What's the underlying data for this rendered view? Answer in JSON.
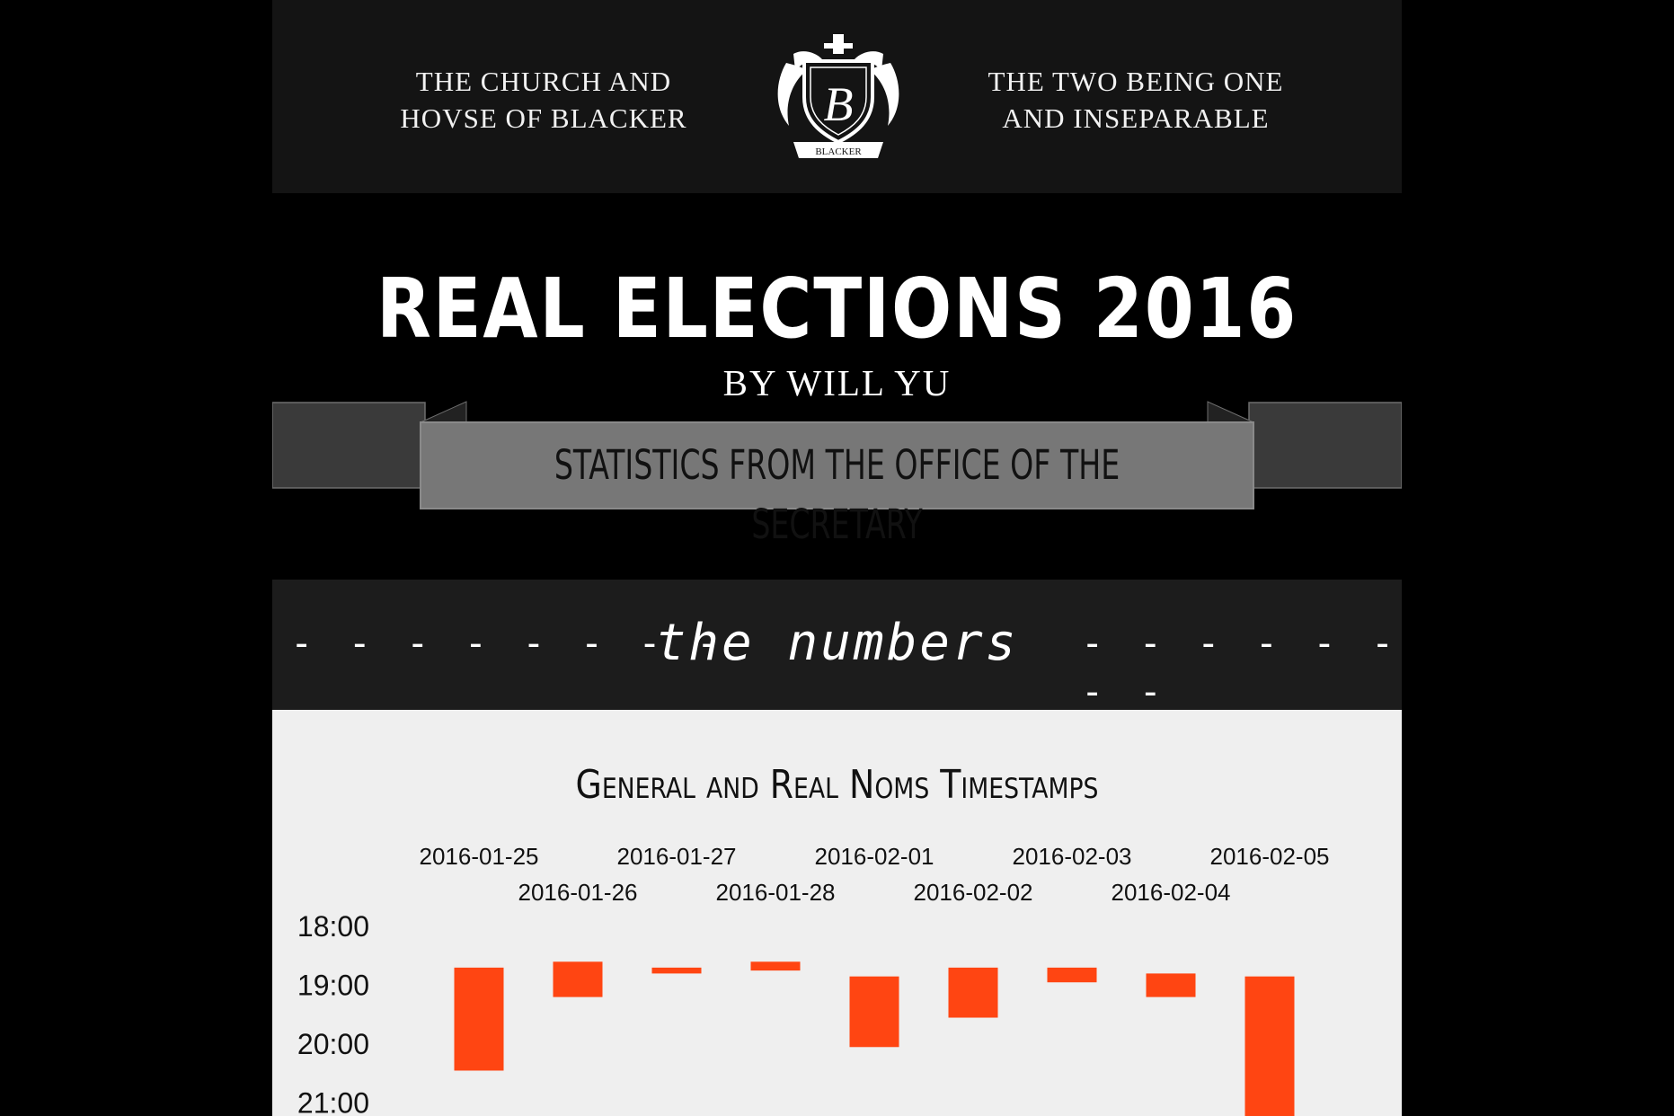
{
  "header": {
    "motto_left": [
      "THE CHURCH AND",
      "HOVSE OF BLACKER"
    ],
    "motto_right": [
      "THE TWO BEING ONE",
      "AND INSEPARABLE"
    ],
    "crest_icon": "blacker-crest-icon",
    "crest_letter": "B",
    "crest_banner": "BLACKER"
  },
  "title": "REAL ELECTIONS 2016",
  "byline": "BY WILL YU",
  "ribbon": {
    "label": "STATISTICS FROM THE OFFICE OF THE SECRETARY"
  },
  "section": {
    "title": "the numbers",
    "left_dashes": "- - - - - - - -",
    "right_dashes": "- - - - - - - -"
  },
  "colors": {
    "background": "#000000",
    "panel": "#efefef",
    "bar": "#ff4512"
  },
  "chart_data": {
    "type": "bar",
    "title": "General and Real Noms Timestamps",
    "xlabel": "",
    "ylabel": "",
    "categories": [
      "2016-01-25",
      "2016-01-26",
      "2016-01-27",
      "2016-01-28",
      "2016-02-01",
      "2016-02-02",
      "2016-02-03",
      "2016-02-04",
      "2016-02-05"
    ],
    "y_ticks": [
      "18:00",
      "19:00",
      "20:00",
      "21:00"
    ],
    "y_range_hours": [
      18,
      21
    ],
    "y_inverted": true,
    "series": [
      {
        "start": [
          18.7,
          18.6,
          18.7,
          18.6,
          18.85,
          18.7,
          18.7,
          18.8,
          18.85
        ],
        "end": [
          20.45,
          19.2,
          18.8,
          18.75,
          20.05,
          19.55,
          18.95,
          19.2,
          21.4
        ]
      }
    ]
  }
}
